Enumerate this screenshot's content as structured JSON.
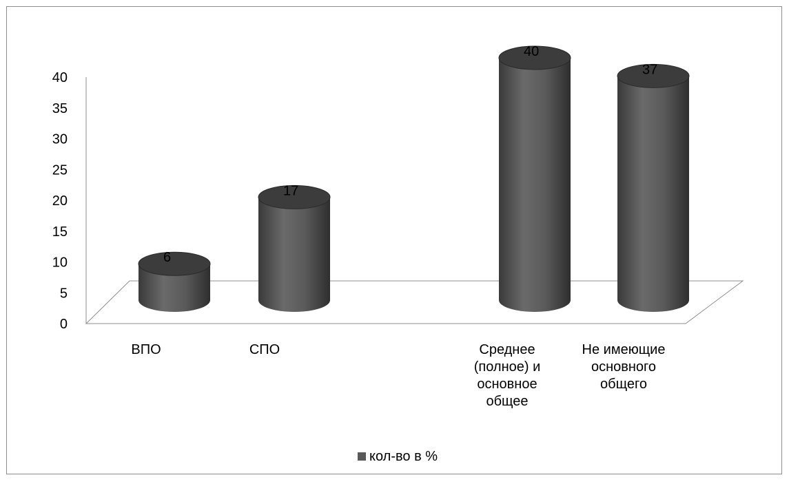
{
  "chart_data": {
    "type": "bar",
    "style": "3d-cylinder",
    "categories": [
      [
        "ВПО"
      ],
      [
        "СПО"
      ],
      [
        "Среднее",
        "(полное) и",
        "основное",
        "общее"
      ],
      [
        "Не имеющие",
        "основного",
        "общего"
      ]
    ],
    "series": [
      {
        "name": "кол-во в %",
        "values": [
          6,
          17,
          40,
          37
        ],
        "color": "#595959"
      }
    ],
    "data_labels": [
      "6",
      "17",
      "40",
      "37"
    ],
    "ylim": [
      0,
      40
    ],
    "yticks": [
      "0",
      "5",
      "10",
      "15",
      "20",
      "25",
      "30",
      "35",
      "40"
    ],
    "grid": false,
    "legend": "bottom",
    "legend_label": "кол-во в %"
  }
}
